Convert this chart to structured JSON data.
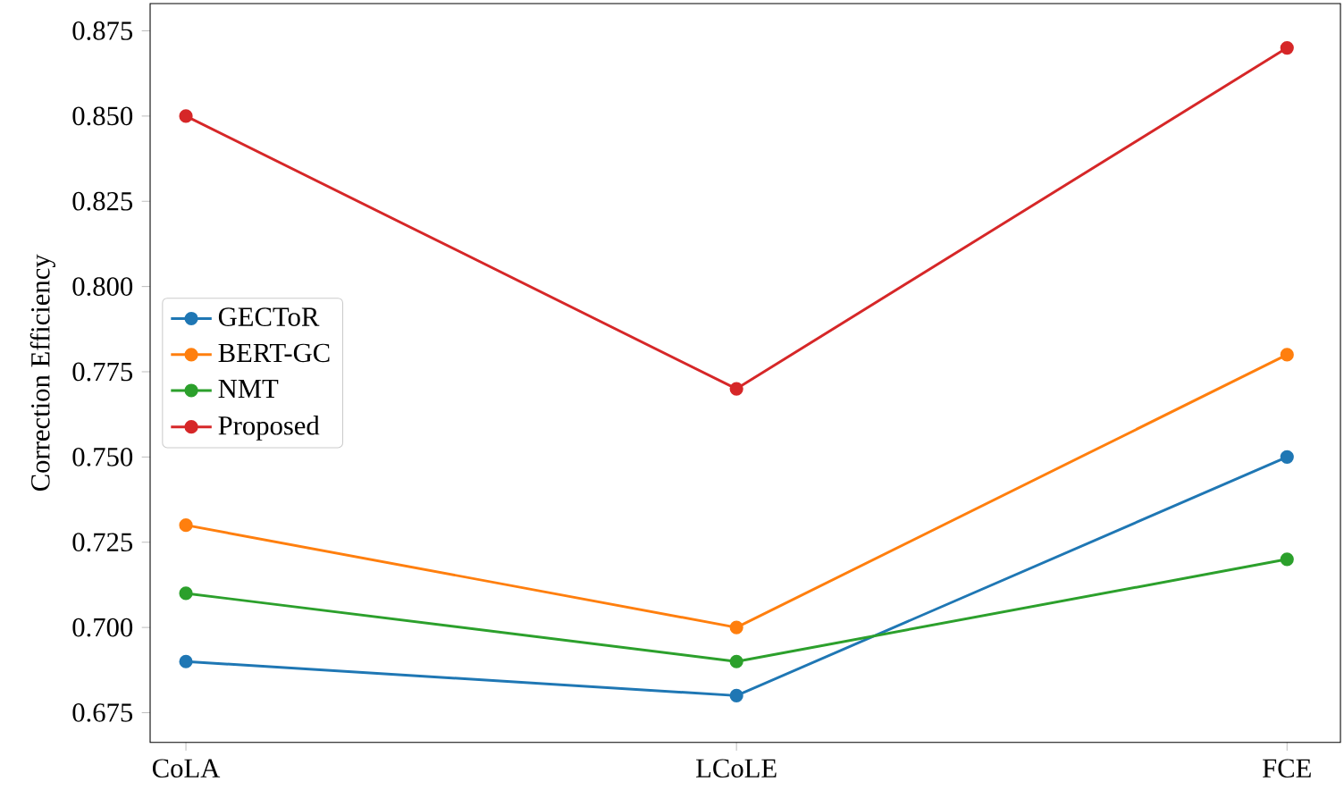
{
  "chart_data": {
    "type": "line",
    "ylabel": "Correction Efficiency",
    "categories": [
      "CoLA",
      "LCoLE",
      "FCE"
    ],
    "series": [
      {
        "name": "GECToR",
        "color": "#1f77b4",
        "values": [
          0.69,
          0.68,
          0.75
        ]
      },
      {
        "name": "BERT-GC",
        "color": "#ff7f0e",
        "values": [
          0.73,
          0.7,
          0.78
        ]
      },
      {
        "name": "NMT",
        "color": "#2ca02c",
        "values": [
          0.71,
          0.69,
          0.72
        ]
      },
      {
        "name": "Proposed",
        "color": "#d62728",
        "values": [
          0.85,
          0.77,
          0.87
        ]
      }
    ],
    "ylim": [
      0.6663,
      0.883
    ],
    "yticks": [
      {
        "value": 0.675,
        "label": "0.675"
      },
      {
        "value": 0.7,
        "label": "0.700"
      },
      {
        "value": 0.725,
        "label": "0.725"
      },
      {
        "value": 0.75,
        "label": "0.750"
      },
      {
        "value": 0.775,
        "label": "0.775"
      },
      {
        "value": 0.8,
        "label": "0.800"
      },
      {
        "value": 0.825,
        "label": "0.825"
      },
      {
        "value": 0.85,
        "label": "0.850"
      },
      {
        "value": 0.875,
        "label": "0.875"
      }
    ],
    "legend": "left",
    "marker": "circle",
    "grid": false,
    "line_style": "solid"
  }
}
